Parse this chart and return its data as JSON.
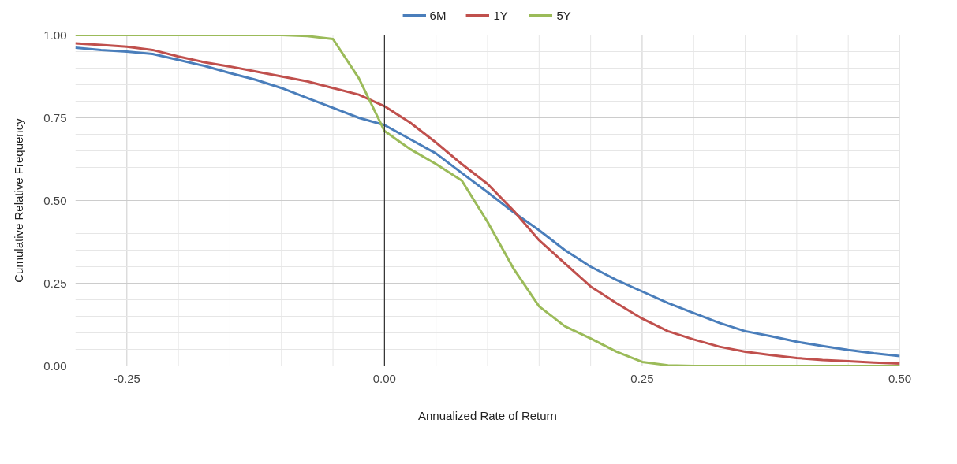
{
  "chart_data": {
    "type": "line",
    "xlabel": "Annualized Rate of Return",
    "ylabel": "Cumulative Relative Frequency",
    "x": [
      -0.3,
      -0.275,
      -0.25,
      -0.225,
      -0.2,
      -0.175,
      -0.15,
      -0.125,
      -0.1,
      -0.075,
      -0.05,
      -0.025,
      0,
      0.025,
      0.05,
      0.075,
      0.1,
      0.125,
      0.15,
      0.175,
      0.2,
      0.225,
      0.25,
      0.275,
      0.3,
      0.325,
      0.35,
      0.375,
      0.4,
      0.425,
      0.45,
      0.475,
      0.5
    ],
    "series": [
      {
        "name": "6M",
        "color": "#4a7ebb",
        "values": [
          0.962,
          0.955,
          0.95,
          0.943,
          0.925,
          0.907,
          0.885,
          0.865,
          0.84,
          0.81,
          0.78,
          0.75,
          0.728,
          0.685,
          0.642,
          0.583,
          0.525,
          0.465,
          0.41,
          0.35,
          0.3,
          0.26,
          0.225,
          0.19,
          0.16,
          0.13,
          0.105,
          0.09,
          0.073,
          0.06,
          0.048,
          0.038,
          0.03
        ]
      },
      {
        "name": "1Y",
        "color": "#c0504d",
        "values": [
          0.975,
          0.97,
          0.965,
          0.955,
          0.935,
          0.918,
          0.905,
          0.89,
          0.875,
          0.86,
          0.84,
          0.82,
          0.785,
          0.735,
          0.675,
          0.61,
          0.55,
          0.47,
          0.38,
          0.31,
          0.24,
          0.19,
          0.143,
          0.105,
          0.08,
          0.058,
          0.043,
          0.033,
          0.024,
          0.018,
          0.014,
          0.01,
          0.007
        ]
      },
      {
        "name": "5Y",
        "color": "#9bbb59",
        "values": [
          1.0,
          1.0,
          1.0,
          1.0,
          1.0,
          1.0,
          1.0,
          1.0,
          1.0,
          0.997,
          0.988,
          0.87,
          0.71,
          0.655,
          0.61,
          0.56,
          0.435,
          0.295,
          0.18,
          0.12,
          0.083,
          0.043,
          0.012,
          0.002,
          0,
          0,
          0,
          0,
          0,
          0,
          0,
          0,
          0
        ]
      }
    ],
    "xlim": [
      -0.3,
      0.5
    ],
    "ylim": [
      0,
      1
    ],
    "xticks": [
      {
        "value": -0.25,
        "label": "-0.25"
      },
      {
        "value": -0.2,
        "label": null
      },
      {
        "value": -0.15,
        "label": null
      },
      {
        "value": -0.1,
        "label": null
      },
      {
        "value": -0.05,
        "label": null
      },
      {
        "value": 0,
        "label": "0.00"
      },
      {
        "value": 0.05,
        "label": null
      },
      {
        "value": 0.1,
        "label": null
      },
      {
        "value": 0.15,
        "label": null
      },
      {
        "value": 0.2,
        "label": null
      },
      {
        "value": 0.25,
        "label": "0.25"
      },
      {
        "value": 0.3,
        "label": null
      },
      {
        "value": 0.35,
        "label": null
      },
      {
        "value": 0.4,
        "label": null
      },
      {
        "value": 0.45,
        "label": null
      },
      {
        "value": 0.5,
        "label": "0.50"
      }
    ],
    "yticks": [
      {
        "value": 0,
        "label": "0.00"
      },
      {
        "value": 0.05,
        "label": null
      },
      {
        "value": 0.1,
        "label": null
      },
      {
        "value": 0.15,
        "label": null
      },
      {
        "value": 0.2,
        "label": null
      },
      {
        "value": 0.25,
        "label": "0.25"
      },
      {
        "value": 0.3,
        "label": null
      },
      {
        "value": 0.35,
        "label": null
      },
      {
        "value": 0.4,
        "label": null
      },
      {
        "value": 0.45,
        "label": null
      },
      {
        "value": 0.5,
        "label": "0.50"
      },
      {
        "value": 0.55,
        "label": null
      },
      {
        "value": 0.6,
        "label": null
      },
      {
        "value": 0.65,
        "label": null
      },
      {
        "value": 0.7,
        "label": null
      },
      {
        "value": 0.75,
        "label": "0.75"
      },
      {
        "value": 0.8,
        "label": null
      },
      {
        "value": 0.85,
        "label": null
      },
      {
        "value": 0.9,
        "label": null
      },
      {
        "value": 0.95,
        "label": null
      },
      {
        "value": 1,
        "label": "1.00"
      }
    ],
    "ref_lines": [
      {
        "axis": "x",
        "value": 0,
        "color": "#333333"
      }
    ],
    "grid": true,
    "legend": "top",
    "marker": "none",
    "line_style": "solid"
  }
}
